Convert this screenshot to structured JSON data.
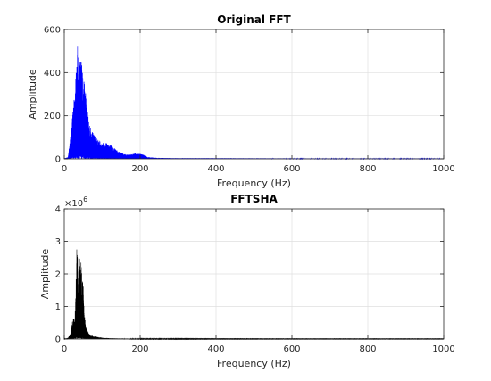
{
  "chart_data": [
    {
      "type": "line",
      "title": "Original FFT",
      "xlabel": "Frequency (Hz)",
      "ylabel": "Amplitude",
      "xlim": [
        0,
        1000
      ],
      "ylim": [
        0,
        600
      ],
      "xticks": [
        0,
        200,
        400,
        600,
        800,
        1000
      ],
      "yticks": [
        0,
        200,
        400,
        600
      ],
      "xtick_labels": [
        "0",
        "200",
        "400",
        "600",
        "800",
        "1000"
      ],
      "ytick_labels": [
        "0",
        "200",
        "400",
        "600"
      ],
      "y_exponent_label": "",
      "grid": true,
      "color": "#0000ff",
      "envelope": {
        "x": [
          0,
          10,
          18,
          24,
          28,
          32,
          36,
          40,
          44,
          48,
          52,
          56,
          60,
          66,
          72,
          80,
          90,
          100,
          110,
          120,
          130,
          140,
          150,
          160,
          170,
          180,
          190,
          200,
          210,
          220,
          240,
          260,
          300,
          400,
          600,
          800,
          1000
        ],
        "y": [
          2,
          8,
          130,
          255,
          330,
          440,
          550,
          490,
          470,
          420,
          370,
          330,
          230,
          170,
          130,
          110,
          90,
          75,
          80,
          68,
          55,
          40,
          30,
          22,
          20,
          22,
          28,
          25,
          18,
          8,
          5,
          4,
          3,
          3,
          2,
          2,
          2
        ]
      }
    },
    {
      "type": "line",
      "title": "FFTSHA",
      "xlabel": "Frequency (Hz)",
      "ylabel": "Amplitude",
      "xlim": [
        0,
        1000
      ],
      "ylim": [
        0,
        4000000
      ],
      "xticks": [
        0,
        200,
        400,
        600,
        800,
        1000
      ],
      "yticks": [
        0,
        1000000,
        2000000,
        3000000,
        4000000
      ],
      "xtick_labels": [
        "0",
        "200",
        "400",
        "600",
        "800",
        "1000"
      ],
      "ytick_labels": [
        "0",
        "1",
        "2",
        "3",
        "4"
      ],
      "y_exponent_label": "×10",
      "y_exponent_power": "6",
      "grid": true,
      "color": "#000000",
      "envelope": {
        "x": [
          0,
          10,
          16,
          20,
          24,
          28,
          32,
          34,
          36,
          38,
          40,
          42,
          44,
          46,
          48,
          50,
          52,
          54,
          56,
          58,
          60,
          64,
          70,
          80,
          90,
          100,
          120,
          150,
          200,
          300,
          400,
          600,
          800,
          1000
        ],
        "y": [
          5000,
          40000,
          150000,
          500000,
          650000,
          700000,
          2200000,
          3450000,
          2000000,
          2300000,
          2650000,
          2400000,
          2500000,
          2100000,
          2150000,
          1700000,
          1200000,
          700000,
          500000,
          350000,
          300000,
          180000,
          120000,
          80000,
          60000,
          40000,
          25000,
          15000,
          10000,
          8000,
          6000,
          5000,
          5000,
          5000
        ]
      }
    }
  ]
}
